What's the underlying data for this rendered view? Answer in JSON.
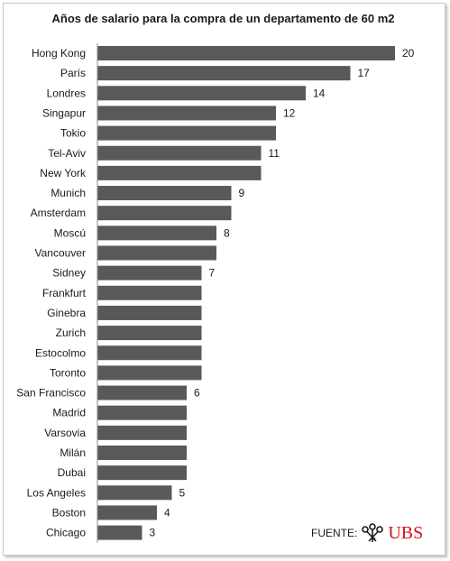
{
  "chart_data": {
    "type": "bar",
    "orientation": "horizontal",
    "title": "Años de salario para la compra de un departamento de 60 m2",
    "categories": [
      "Hong Kong",
      "París",
      "Londres",
      "Singapur",
      "Tokio",
      "Tel-Aviv",
      "New York",
      "Munich",
      "Amsterdam",
      "Moscú",
      "Vancouver",
      "Sidney",
      "Frankfurt",
      "Ginebra",
      "Zurich",
      "Estocolmo",
      "Toronto",
      "San Francisco",
      "Madrid",
      "Varsovia",
      "Milán",
      "Dubai",
      "Los Angeles",
      "Boston",
      "Chicago"
    ],
    "values": [
      20,
      17,
      14,
      12,
      12,
      11,
      11,
      9,
      9,
      8,
      8,
      7,
      7,
      7,
      7,
      7,
      7,
      6,
      6,
      6,
      6,
      6,
      5,
      4,
      3
    ],
    "data_labels": [
      "20",
      "17",
      "14",
      "12",
      "",
      "11",
      "",
      "9",
      "",
      "8",
      "",
      "7",
      "",
      "",
      "",
      "",
      "",
      "6",
      "",
      "",
      "",
      "",
      "5",
      "4",
      "3"
    ],
    "xlim": [
      0,
      20
    ],
    "grid": false,
    "bar_color": "#595959"
  },
  "source": {
    "label": "FUENTE:",
    "logo_text": "UBS",
    "logo_color": "#d8101a"
  }
}
